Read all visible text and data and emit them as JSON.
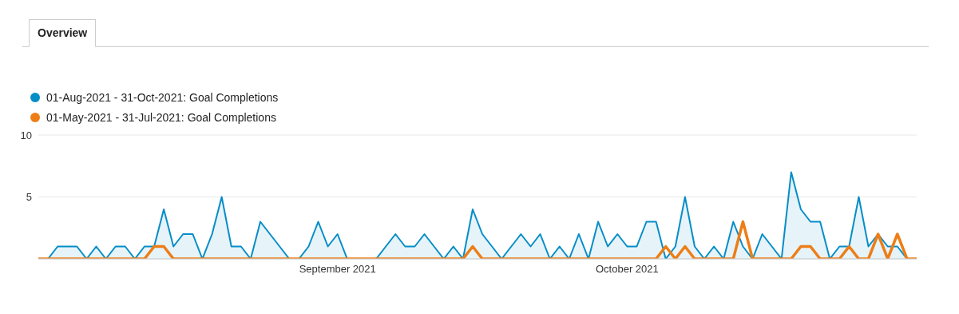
{
  "chart_data": {
    "type": "area",
    "title": "Overview",
    "x": [
      "2021-08-01",
      "2021-08-02",
      "2021-08-03",
      "2021-08-04",
      "2021-08-05",
      "2021-08-06",
      "2021-08-07",
      "2021-08-08",
      "2021-08-09",
      "2021-08-10",
      "2021-08-11",
      "2021-08-12",
      "2021-08-13",
      "2021-08-14",
      "2021-08-15",
      "2021-08-16",
      "2021-08-17",
      "2021-08-18",
      "2021-08-19",
      "2021-08-20",
      "2021-08-21",
      "2021-08-22",
      "2021-08-23",
      "2021-08-24",
      "2021-08-25",
      "2021-08-26",
      "2021-08-27",
      "2021-08-28",
      "2021-08-29",
      "2021-08-30",
      "2021-08-31",
      "2021-09-01",
      "2021-09-02",
      "2021-09-03",
      "2021-09-04",
      "2021-09-05",
      "2021-09-06",
      "2021-09-07",
      "2021-09-08",
      "2021-09-09",
      "2021-09-10",
      "2021-09-11",
      "2021-09-12",
      "2021-09-13",
      "2021-09-14",
      "2021-09-15",
      "2021-09-16",
      "2021-09-17",
      "2021-09-18",
      "2021-09-19",
      "2021-09-20",
      "2021-09-21",
      "2021-09-22",
      "2021-09-23",
      "2021-09-24",
      "2021-09-25",
      "2021-09-26",
      "2021-09-27",
      "2021-09-28",
      "2021-09-29",
      "2021-09-30",
      "2021-10-01",
      "2021-10-02",
      "2021-10-03",
      "2021-10-04",
      "2021-10-05",
      "2021-10-06",
      "2021-10-07",
      "2021-10-08",
      "2021-10-09",
      "2021-10-10",
      "2021-10-11",
      "2021-10-12",
      "2021-10-13",
      "2021-10-14",
      "2021-10-15",
      "2021-10-16",
      "2021-10-17",
      "2021-10-18",
      "2021-10-19",
      "2021-10-20",
      "2021-10-21",
      "2021-10-22",
      "2021-10-23",
      "2021-10-24",
      "2021-10-25",
      "2021-10-26",
      "2021-10-27",
      "2021-10-28",
      "2021-10-29",
      "2021-10-30",
      "2021-10-31"
    ],
    "series": [
      {
        "name": "01-Aug-2021 - 31-Oct-2021: Goal Completions",
        "color": "#058dc7",
        "values": [
          0,
          0,
          1,
          1,
          1,
          0,
          1,
          0,
          1,
          1,
          0,
          1,
          1,
          4,
          1,
          2,
          2,
          0,
          2,
          5,
          1,
          1,
          0,
          3,
          2,
          1,
          0,
          0,
          1,
          3,
          1,
          2,
          0,
          0,
          0,
          0,
          1,
          2,
          1,
          1,
          2,
          1,
          0,
          1,
          0,
          4,
          2,
          1,
          0,
          1,
          2,
          1,
          2,
          0,
          1,
          0,
          2,
          0,
          3,
          1,
          2,
          1,
          1,
          3,
          3,
          0,
          1,
          5,
          1,
          0,
          1,
          0,
          3,
          1,
          0,
          2,
          1,
          0,
          7,
          4,
          3,
          3,
          0,
          1,
          1,
          5,
          1,
          2,
          1,
          1,
          0,
          0
        ]
      },
      {
        "name": "01-May-2021 - 31-Jul-2021: Goal Completions",
        "color": "#ed7e17",
        "type": "line",
        "values": [
          0,
          0,
          0,
          0,
          0,
          0,
          0,
          0,
          0,
          0,
          0,
          0,
          1,
          1,
          0,
          0,
          0,
          0,
          0,
          0,
          0,
          0,
          0,
          0,
          0,
          0,
          0,
          0,
          0,
          0,
          0,
          0,
          0,
          0,
          0,
          0,
          0,
          0,
          0,
          0,
          0,
          0,
          0,
          0,
          0,
          1,
          0,
          0,
          0,
          0,
          0,
          0,
          0,
          0,
          0,
          0,
          0,
          0,
          0,
          0,
          0,
          0,
          0,
          0,
          0,
          1,
          0,
          1,
          0,
          0,
          0,
          0,
          0,
          3,
          0,
          0,
          0,
          0,
          0,
          1,
          1,
          0,
          0,
          0,
          1,
          0,
          0,
          2,
          0,
          2,
          0,
          0
        ]
      }
    ],
    "xlim": [
      "2021-08-01",
      "2021-10-31"
    ],
    "xticks": [
      {
        "value": "2021-09-01",
        "label": "September 2021"
      },
      {
        "value": "2021-10-01",
        "label": "October 2021"
      }
    ],
    "ylim": [
      0,
      10
    ],
    "yticks": [
      {
        "value": 0,
        "label": null
      },
      5,
      10
    ],
    "grid": "y",
    "legend": "top left",
    "marker": "none"
  }
}
